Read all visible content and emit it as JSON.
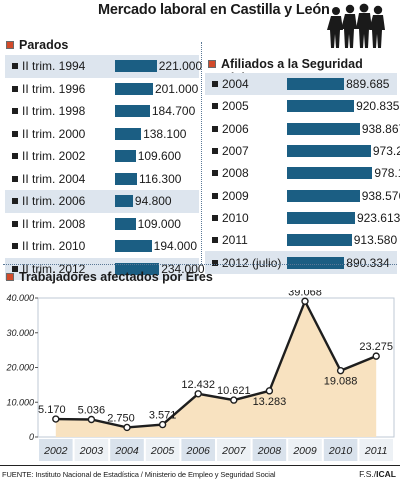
{
  "header": {
    "title": "Mercado laboral en Castilla y León"
  },
  "colors": {
    "bar": "#1b5e83",
    "highlight_row": "#dde5ee",
    "area_fill": "#f8e2c0",
    "line": "#1e1e1e",
    "accent_square": "#d24a2a"
  },
  "parados": {
    "title": "Parados",
    "rows": [
      {
        "label": "II trim. 1994",
        "value": 221000,
        "display": "221.000",
        "highlight": true
      },
      {
        "label": "II trim. 1996",
        "value": 201000,
        "display": "201.000",
        "highlight": false
      },
      {
        "label": "II trim. 1998",
        "value": 184700,
        "display": "184.700",
        "highlight": false
      },
      {
        "label": "II trim. 2000",
        "value": 138100,
        "display": "138.100",
        "highlight": false
      },
      {
        "label": "II trim. 2002",
        "value": 109600,
        "display": "109.600",
        "highlight": false
      },
      {
        "label": "II trim. 2004",
        "value": 116300,
        "display": "116.300",
        "highlight": false
      },
      {
        "label": "II trim. 2006",
        "value": 94800,
        "display": "94.800",
        "highlight": true
      },
      {
        "label": "II trim. 2008",
        "value": 109000,
        "display": "109.000",
        "highlight": false
      },
      {
        "label": "II trim. 2010",
        "value": 194000,
        "display": "194.000",
        "highlight": false
      },
      {
        "label": "II trim. 2012",
        "value": 234000,
        "display": "234.000",
        "highlight": true
      }
    ]
  },
  "afiliados": {
    "title": "Afiliados a la Seguridad Social",
    "rows": [
      {
        "label": "2004",
        "value": 889685,
        "display": "889.685",
        "highlight": true
      },
      {
        "label": "2005",
        "value": 920835,
        "display": "920.835",
        "highlight": false
      },
      {
        "label": "2006",
        "value": 938867,
        "display": "938.867",
        "highlight": false
      },
      {
        "label": "2007",
        "value": 973274,
        "display": "973.274",
        "highlight": false
      },
      {
        "label": "2008",
        "value": 978148,
        "display": "978.148",
        "highlight": false
      },
      {
        "label": "2009",
        "value": 938576,
        "display": "938.576",
        "highlight": false
      },
      {
        "label": "2010",
        "value": 923613,
        "display": "923.613",
        "highlight": false
      },
      {
        "label": "2011",
        "value": 913580,
        "display": "913.580",
        "highlight": false
      },
      {
        "label": "2012 (julio)",
        "value": 890334,
        "display": "890.334",
        "highlight": true
      }
    ]
  },
  "eres": {
    "title": "Trabajadores afectados por Eres"
  },
  "chart_data": [
    {
      "type": "bar",
      "title": "Parados",
      "categories": [
        "II trim. 1994",
        "II trim. 1996",
        "II trim. 1998",
        "II trim. 2000",
        "II trim. 2002",
        "II trim. 2004",
        "II trim. 2006",
        "II trim. 2008",
        "II trim. 2010",
        "II trim. 2012"
      ],
      "values": [
        221000,
        201000,
        184700,
        138100,
        109600,
        116300,
        94800,
        109000,
        194000,
        234000
      ],
      "orientation": "horizontal"
    },
    {
      "type": "bar",
      "title": "Afiliados a la Seguridad Social",
      "categories": [
        "2004",
        "2005",
        "2006",
        "2007",
        "2008",
        "2009",
        "2010",
        "2011",
        "2012 (julio)"
      ],
      "values": [
        889685,
        920835,
        938867,
        973274,
        978148,
        938576,
        923613,
        913580,
        890334
      ],
      "orientation": "horizontal"
    },
    {
      "type": "area",
      "title": "Trabajadores afectados por Eres",
      "x": [
        "2002",
        "2003",
        "2004",
        "2005",
        "2006",
        "2007",
        "2008",
        "2009",
        "2010",
        "2011"
      ],
      "values": [
        5170,
        5036,
        2750,
        3571,
        12432,
        10621,
        13283,
        39068,
        19088,
        23275
      ],
      "labels": [
        "5.170",
        "5.036",
        "2.750",
        "3.571",
        "12.432",
        "10.621",
        "13.283",
        "39.068",
        "19.088",
        "23.275"
      ],
      "yticks": [
        "0",
        "10.000",
        "20.000",
        "30.000",
        "40.000"
      ],
      "ylim": [
        0,
        40000
      ],
      "grid": false
    }
  ],
  "footer": {
    "source": "FUENTE: Instituto Nacional de Estadística / Ministerio de Empleo y Seguridad Social",
    "credit_prefix": "F.S./",
    "credit_brand": "ICAL"
  }
}
